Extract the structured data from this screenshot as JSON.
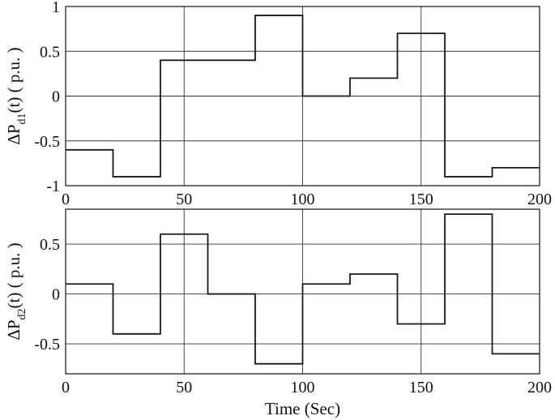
{
  "chart_data": [
    {
      "type": "line",
      "step": true,
      "title": "",
      "xlabel": "",
      "ylabel": {
        "base": "ΔP",
        "sub": "d1",
        "rest": "(t)  ( p.u. )"
      },
      "xlim": [
        0,
        200
      ],
      "ylim": [
        -1,
        1
      ],
      "xticks": [
        0,
        50,
        100,
        150,
        200
      ],
      "yticks": [
        1,
        0.5,
        0,
        -0.5,
        -1
      ],
      "xtick_labels": [
        "0",
        "50",
        "100",
        "150",
        "200"
      ],
      "ytick_labels": [
        "1",
        "0.5",
        "0",
        "-0.5",
        "-1"
      ],
      "grid": true,
      "series": [
        {
          "color": "#1a1a1a",
          "x": [
            0,
            20,
            40,
            60,
            80,
            100,
            120,
            140,
            160,
            180,
            200
          ],
          "y": [
            -0.6,
            -0.9,
            0.4,
            0.4,
            0.9,
            0.0,
            0.2,
            0.7,
            -0.9,
            -0.8,
            -0.8
          ]
        }
      ]
    },
    {
      "type": "line",
      "step": true,
      "title": "",
      "xlabel": "Time (Sec)",
      "ylabel": {
        "base": "ΔP",
        "sub": "d2",
        "rest": "(t)  ( p.u. )"
      },
      "xlim": [
        0,
        200
      ],
      "ylim": [
        -0.8,
        0.85
      ],
      "xticks": [
        0,
        50,
        100,
        150,
        200
      ],
      "yticks": [
        0.5,
        0,
        -0.5
      ],
      "xtick_labels": [
        "0",
        "50",
        "100",
        "150",
        "200"
      ],
      "ytick_labels": [
        "0.5",
        "0",
        "-0.5"
      ],
      "grid": true,
      "series": [
        {
          "color": "#1a1a1a",
          "x": [
            0,
            20,
            40,
            60,
            80,
            100,
            120,
            140,
            160,
            180,
            200
          ],
          "y": [
            0.1,
            -0.4,
            0.6,
            0.0,
            -0.7,
            0.1,
            0.2,
            -0.3,
            0.8,
            -0.6,
            -0.6
          ]
        }
      ]
    }
  ]
}
